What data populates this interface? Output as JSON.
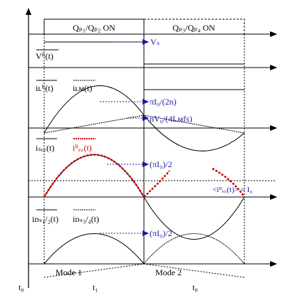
{
  "header": {
    "phase1": "Qₚ₁/Qₚ₂ ON",
    "phase2": "Qₚ₃/Qₚ₄ ON"
  },
  "panel_vr": {
    "label": "Vᴿ(t)",
    "annotation": "Vₛ"
  },
  "panel_ilr": {
    "label_lr": "iʟᴿ(t)",
    "label_lm": "iʟᴍ(t)",
    "annotation_peak": "πI₀/(2n)",
    "annotation_slope": "nV₀/(4Lᴍfs)"
  },
  "panel_isec": {
    "label_sec": "iₛₑ꜀(t)",
    "label_rec": "iᴿₑ꜀(t)",
    "annotation_peak": "(πI₀)/2",
    "annotation_avg": "<iᴿₑ꜀(t)> = I₀"
  },
  "panel_ids": {
    "label_12": "iᴅₛ₁/₂(t)",
    "label_34": "iᴅₛ₃/₄(t)",
    "annotation_peak": "(πI₀)/2"
  },
  "time_axis": {
    "t0_left": "t₀",
    "t1": "t₁",
    "t0_right": "t₀",
    "mode1": "Mode 1",
    "mode2": "Mode 2"
  },
  "colors": {
    "black": "#000000",
    "blue": "#1a1aa6",
    "red": "#d00000"
  }
}
